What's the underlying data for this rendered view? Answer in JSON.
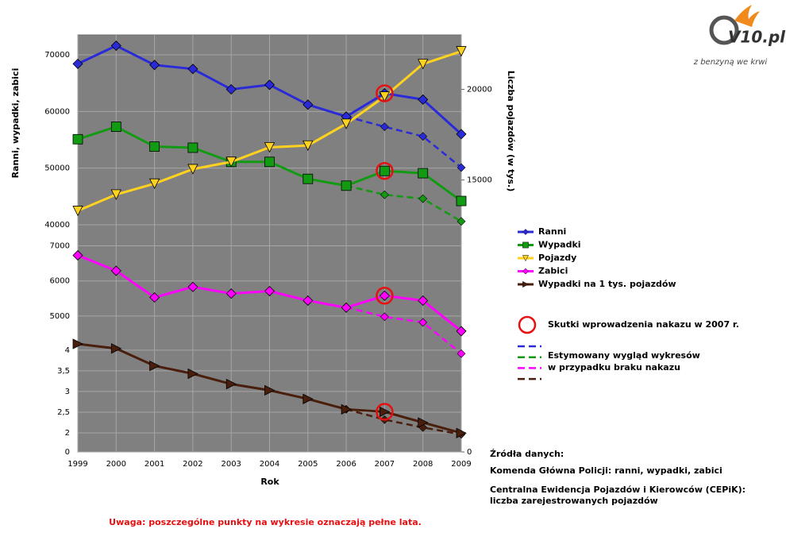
{
  "chart_data": {
    "type": "line",
    "x_title": "Rok",
    "y_title": "Ranni, wypadki, zabici",
    "y2_title": "Liczba pojazdów (w tys.)",
    "x": [
      1999,
      2000,
      2001,
      2002,
      2003,
      2004,
      2005,
      2006,
      2007,
      2008,
      2009
    ],
    "xlim": [
      1999,
      2009
    ],
    "xticks": [
      1999,
      2000,
      2001,
      2002,
      2003,
      2004,
      2005,
      2006,
      2007,
      2008,
      2009
    ],
    "grid": true,
    "panels": [
      {
        "ylim": [
          40000,
          73500
        ],
        "yticks": [
          40000,
          50000,
          60000,
          70000
        ]
      },
      {
        "ylim": [
          4500,
          7600
        ],
        "yticks": [
          5000,
          6000,
          7000
        ]
      },
      {
        "ylim": [
          0,
          4.4
        ],
        "broken_axis": true,
        "yticks": [
          0,
          2,
          {
            "value": 2.5,
            "label": "2,5"
          },
          3,
          {
            "value": 3.5,
            "label": "3,5"
          },
          4
        ]
      }
    ],
    "y2lim": [
      0,
      23000
    ],
    "y2ticks": [
      0,
      15000,
      20000
    ],
    "series": [
      {
        "color": "#2a2ad8",
        "panel": 0,
        "dashed": true,
        "values": [
          null,
          null,
          null,
          null,
          null,
          null,
          null,
          59100,
          57300,
          55600,
          50100
        ]
      },
      {
        "color": "#129a12",
        "panel": 0,
        "dashed": true,
        "values": [
          null,
          null,
          null,
          null,
          null,
          null,
          null,
          46900,
          45300,
          44600,
          40600
        ]
      },
      {
        "color": "#ff00ff",
        "panel": 1,
        "dashed": true,
        "values": [
          null,
          null,
          null,
          null,
          null,
          null,
          null,
          5250,
          4980,
          4820,
          3930
        ]
      },
      {
        "color": "#4a1e0c",
        "panel": 2,
        "dashed": true,
        "values": [
          null,
          null,
          null,
          null,
          null,
          null,
          null,
          2.57,
          2.32,
          2.13,
          1.85
        ]
      },
      {
        "name": "Ranni",
        "color": "#2a2ad8",
        "marker": "diamond",
        "panel": 0,
        "circled": true,
        "values": [
          68400,
          71600,
          68200,
          67500,
          63900,
          64700,
          61200,
          59100,
          63200,
          62100,
          56000
        ]
      },
      {
        "name": "Wypadki",
        "color": "#129a12",
        "marker": "square",
        "panel": 0,
        "circled": true,
        "values": [
          55100,
          57300,
          53800,
          53600,
          51100,
          51100,
          48100,
          46900,
          49500,
          49100,
          44200
        ]
      },
      {
        "name": "Pojazdy",
        "color": "#ffd21f",
        "marker": "triangle-down",
        "axis": "y2",
        "values": [
          13300,
          14200,
          14800,
          15600,
          16000,
          16800,
          16900,
          18100,
          19600,
          21400,
          22100
        ]
      },
      {
        "name": "Zabici",
        "color": "#ff00ff",
        "marker": "diamond",
        "panel": 1,
        "circled": true,
        "values": [
          6730,
          6290,
          5530,
          5830,
          5640,
          5710,
          5440,
          5240,
          5580,
          5440,
          4570
        ]
      },
      {
        "name": "Wypadki na 1 tys. pojazdów",
        "color": "#4a1e0c",
        "marker": "triangle-right",
        "panel": 2,
        "circled": true,
        "values": [
          4.15,
          4.04,
          3.62,
          3.43,
          3.18,
          3.03,
          2.82,
          2.57,
          2.51,
          2.25,
          1.98
        ]
      }
    ],
    "annotation": {
      "label": "Skutki wprowadzenia nakazu w 2007 r.",
      "x": 2007,
      "color": "#e61010"
    },
    "estimate_label": [
      "Estymowany wygląd wykresów",
      "w przypadku braku nakazu"
    ],
    "note": "Uwaga: poszczególne punkty na wykresie oznaczają pełne lata.",
    "sources": {
      "title": "Źródła danych:",
      "lines": [
        "Komenda Główna Policji: ranni, wypadki, zabici",
        "Centralna Ewidencja Pojazdów i Kierowców (CEPiK):",
        "liczba zarejestrowanych pojazdów"
      ]
    },
    "logo": {
      "name": "V10.pl",
      "tagline": "z benzyną we krwi"
    }
  }
}
